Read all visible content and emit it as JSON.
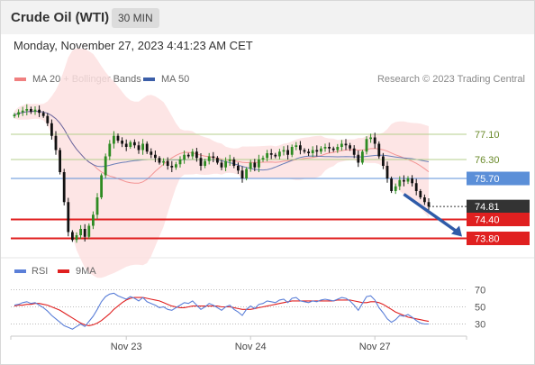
{
  "header": {
    "title": "Crude Oil (WTI)",
    "interval": "30 MIN"
  },
  "datetime": "Monday, November 27, 2023 4:41:23 AM CET",
  "credit": "Research © 2023 Trading Central",
  "colors": {
    "bollinger": "#f08080",
    "bollinger_fill": "#fde0e0",
    "ma50": "#3b5ea8",
    "up": "#2e8b22",
    "down": "#111111",
    "resistance": "#b5cf8c",
    "pivot": "#5b8fd8",
    "support": "#e02020",
    "last": "#333333",
    "rsi": "#5b7fd8",
    "rsi_ma": "#e02020",
    "arrow": "#2f5ba8"
  },
  "chart_data": [
    {
      "type": "candlestick",
      "legend": [
        {
          "name": "MA 20 + Bollinger Bands",
          "color": "#f08080"
        },
        {
          "name": "MA 50",
          "color": "#3b5ea8"
        }
      ],
      "legend_position": "top-left",
      "ylim": [
        73.3,
        78.5
      ],
      "close": [
        77.72,
        77.8,
        77.85,
        77.9,
        77.82,
        77.88,
        77.78,
        77.68,
        77.45,
        77.05,
        76.6,
        75.9,
        74.95,
        74.0,
        73.75,
        73.9,
        74.1,
        73.85,
        74.2,
        74.55,
        75.1,
        75.8,
        76.4,
        76.8,
        77.05,
        76.9,
        76.8,
        76.7,
        76.85,
        76.75,
        76.6,
        76.8,
        76.55,
        76.45,
        76.35,
        76.2,
        76.25,
        76.1,
        76.05,
        76.15,
        76.3,
        76.45,
        76.4,
        76.55,
        76.35,
        76.1,
        76.25,
        76.4,
        76.35,
        76.2,
        76.05,
        76.25,
        76.3,
        76.1,
        75.95,
        75.7,
        76.0,
        76.2,
        76.05,
        76.3,
        76.35,
        76.5,
        76.45,
        76.4,
        76.55,
        76.6,
        76.45,
        76.7,
        76.75,
        76.6,
        76.55,
        76.5,
        76.6,
        76.55,
        76.65,
        76.7,
        76.65,
        76.6,
        76.7,
        76.8,
        76.75,
        76.65,
        76.45,
        76.2,
        76.55,
        76.95,
        77.0,
        76.8,
        76.4,
        76.1,
        75.7,
        75.3,
        75.45,
        75.65,
        75.6,
        75.7,
        75.55,
        75.3,
        75.1,
        74.95,
        74.81
      ],
      "levels": [
        {
          "value": 77.1,
          "label": "77.10",
          "kind": "resistance"
        },
        {
          "value": 76.3,
          "label": "76.30",
          "kind": "resistance"
        },
        {
          "value": 75.7,
          "label": "75.70",
          "kind": "pivot"
        },
        {
          "value": 74.81,
          "label": "74.81",
          "kind": "last"
        },
        {
          "value": 74.4,
          "label": "74.40",
          "kind": "support"
        },
        {
          "value": 73.8,
          "label": "73.80",
          "kind": "support"
        }
      ],
      "x_ticks": [
        {
          "index": 27,
          "label": "Nov 23"
        },
        {
          "index": 57,
          "label": "Nov 24"
        },
        {
          "index": 87,
          "label": "Nov 27"
        }
      ],
      "arrow": {
        "from_index": 94,
        "from_value": 75.2,
        "to_value": 73.8
      }
    },
    {
      "type": "line",
      "legend": [
        {
          "name": "RSI",
          "color": "#5b7fd8"
        },
        {
          "name": "9MA",
          "color": "#e02020"
        }
      ],
      "legend_position": "top-left",
      "ylim": [
        21,
        79
      ],
      "y_ticks": [
        70,
        50,
        30
      ],
      "rsi": [
        52,
        53,
        55,
        56,
        54,
        55,
        52,
        49,
        45,
        40,
        36,
        32,
        28,
        26,
        24,
        27,
        30,
        27,
        33,
        39,
        47,
        56,
        62,
        65,
        66,
        63,
        61,
        59,
        62,
        60,
        57,
        61,
        56,
        54,
        52,
        49,
        50,
        47,
        46,
        49,
        52,
        55,
        54,
        57,
        52,
        47,
        50,
        54,
        52,
        49,
        46,
        50,
        52,
        47,
        44,
        40,
        47,
        51,
        48,
        53,
        54,
        57,
        56,
        55,
        58,
        59,
        55,
        60,
        61,
        57,
        56,
        55,
        57,
        56,
        58,
        59,
        58,
        57,
        59,
        61,
        60,
        57,
        52,
        46,
        54,
        62,
        63,
        58,
        49,
        43,
        36,
        32,
        35,
        40,
        39,
        41,
        38,
        34,
        31,
        30,
        30
      ],
      "ma9": [
        51,
        52,
        52,
        53,
        53,
        54,
        54,
        53,
        52,
        50,
        48,
        46,
        43,
        40,
        37,
        34,
        31,
        29,
        28,
        29,
        31,
        34,
        38,
        42,
        47,
        51,
        55,
        58,
        60,
        61,
        61,
        61,
        60,
        59,
        58,
        57,
        55,
        53,
        51,
        50,
        49,
        49,
        50,
        51,
        51,
        51,
        51,
        51,
        51,
        51,
        50,
        50,
        50,
        49,
        48,
        47,
        47,
        47,
        48,
        49,
        50,
        51,
        52,
        53,
        54,
        55,
        56,
        57,
        57,
        57,
        57,
        57,
        57,
        57,
        57,
        57,
        57,
        57,
        58,
        58,
        58,
        58,
        57,
        56,
        55,
        55,
        56,
        56,
        55,
        53,
        50,
        47,
        44,
        42,
        40,
        38,
        37,
        36,
        35,
        34,
        33
      ]
    }
  ]
}
